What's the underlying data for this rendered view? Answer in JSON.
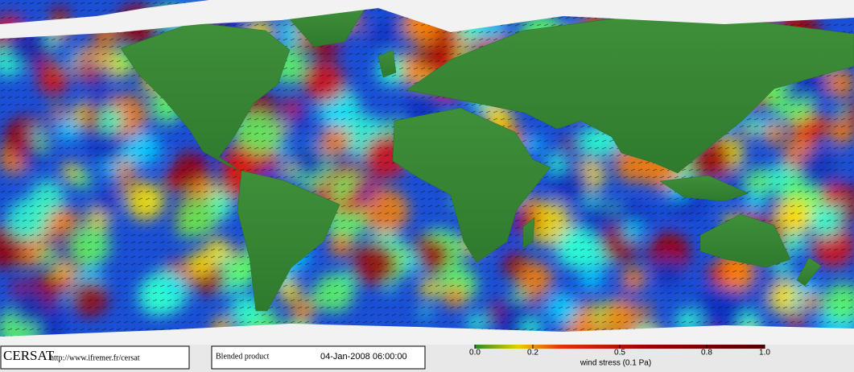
{
  "header": {
    "logo": "CERSAT",
    "url": "http://www.ifremer.fr/cersat",
    "product": "Blended product",
    "timestamp": "04-Jan-2008 06:00:00"
  },
  "colorbar": {
    "label": "wind stress (0.1 Pa)",
    "lim": [
      0,
      1
    ],
    "ticks": [
      {
        "value": 0,
        "label": "0.0"
      },
      0.2,
      0.5,
      0.8,
      {
        "value": 1,
        "label": "1.0"
      }
    ]
  }
}
